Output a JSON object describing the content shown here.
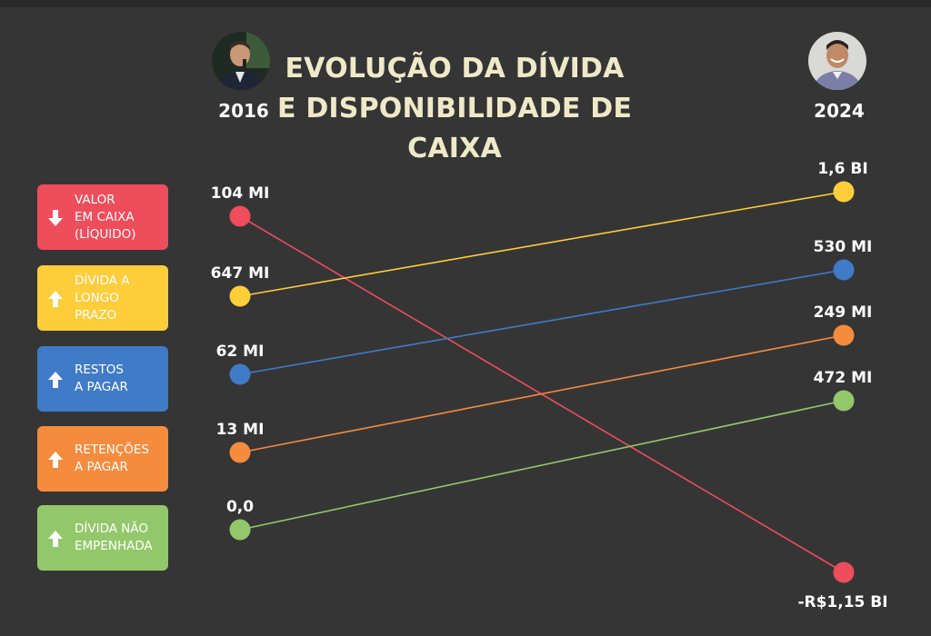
{
  "title_line1": "EVOLUÇÃO DA DÍVIDA",
  "title_line2": "E DISPONIBILIDADE DE CAIXA",
  "left_year": "2016",
  "right_year": "2024",
  "chart_data": {
    "type": "slope",
    "title": "EVOLUÇÃO DA DÍVIDA E DISPONIBILIDADE DE CAIXA",
    "x": [
      "2016",
      "2024"
    ],
    "series": [
      {
        "name": "VALOR\nEM CAIXA\n(LÍQUIDO)",
        "key": "valor-em-caixa",
        "color": "#ee4d5c",
        "direction": "down",
        "start_label": "104 MI",
        "end_label": "-R$1,15 BI",
        "start": 104,
        "end": -1150
      },
      {
        "name": "DÍVIDA A\nLONGO\nPRAZO",
        "key": "divida-longo-prazo",
        "color": "#fdcd3a",
        "direction": "up",
        "start_label": "647 MI",
        "end_label": "1,6 BI",
        "start": 647,
        "end": 1600
      },
      {
        "name": "RESTOS\nA PAGAR",
        "key": "restos-a-pagar",
        "color": "#3f7bc6",
        "direction": "up",
        "start_label": "62 MI",
        "end_label": "530 MI",
        "start": 62,
        "end": 530
      },
      {
        "name": "RETENÇÕES\nA PAGAR",
        "key": "retencoes-a-pagar",
        "color": "#f58b3d",
        "direction": "up",
        "start_label": "13 MI",
        "end_label": "249 MI",
        "start": 13,
        "end": 249
      },
      {
        "name": "DÍVIDA NÃO\nEMPENHADA",
        "key": "divida-nao-empenhada",
        "color": "#92c86a",
        "direction": "up",
        "start_label": "0,0",
        "end_label": "472 MI",
        "start": 0,
        "end": 472
      }
    ]
  }
}
